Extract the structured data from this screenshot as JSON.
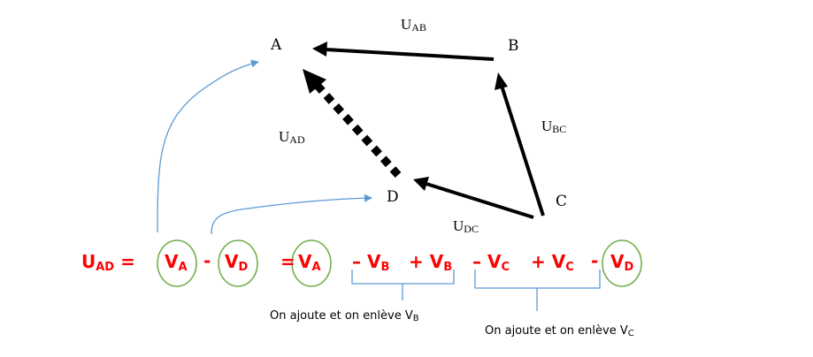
{
  "points": {
    "a": "A",
    "b": "B",
    "c": "C",
    "d": "D"
  },
  "vectors": {
    "ab": {
      "u": "U",
      "sub": "AB"
    },
    "bc": {
      "u": "U",
      "sub": "BC"
    },
    "ad": {
      "u": "U",
      "sub": "AD"
    },
    "dc": {
      "u": "U",
      "sub": "DC"
    }
  },
  "equation": {
    "lhs": {
      "u": "U",
      "sub": "AD",
      "eq": "="
    },
    "va": {
      "v": "V",
      "sub": "A"
    },
    "minus1": "-",
    "vd": {
      "v": "V",
      "sub": "D"
    },
    "eq2": "=",
    "va2": {
      "v": "V",
      "sub": "A"
    },
    "minus_vb": {
      "op": "– V",
      "sub": "B"
    },
    "plus_vb": {
      "op": "+ V",
      "sub": "B"
    },
    "minus_vc": {
      "op": "– V",
      "sub": "C"
    },
    "plus_vc": {
      "op": "+ V",
      "sub": "C"
    },
    "minus2": "-",
    "vd2": {
      "v": "V",
      "sub": "D"
    }
  },
  "notes": {
    "b": {
      "text": "On ajoute et on enlève V",
      "sub": "B"
    },
    "c": {
      "text": "On ajoute et on enlève V",
      "sub": "C"
    }
  },
  "colors": {
    "equation": "#ff0000",
    "circle": "#70ad47",
    "arrows_blue": "#5b9bd5",
    "bracket": "#5b9bd5"
  }
}
